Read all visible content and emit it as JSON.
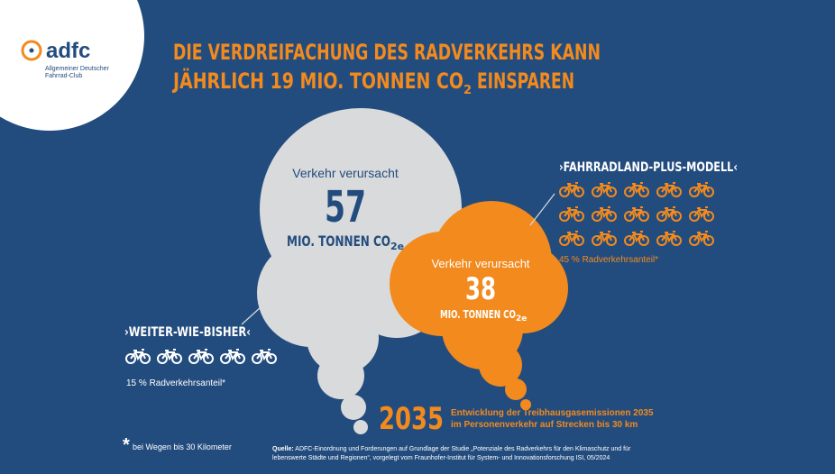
{
  "logo": {
    "name": "adfc",
    "line1": "Allgemeiner Deutscher",
    "line2": "Fahrrad-Club"
  },
  "title": {
    "line1": "DIE VERDREIFACHUNG DES RADVERKEHRS KANN",
    "line2_main": "JÄHRLICH 19 MIO. TONNEN CO",
    "line2_sub": "2",
    "line2_end": " EINSPAREN"
  },
  "current": {
    "caption": "Verkehr verursacht",
    "value": "57",
    "unit_main": "MIO. TONNEN CO",
    "unit_sub": "2e",
    "scenario": "›WEITER-WIE-BISHER‹",
    "share": "15 % Radverkehrsanteil*"
  },
  "plus": {
    "caption": "Verkehr verursacht",
    "value": "38",
    "unit_main": "MIO. TONNEN CO",
    "unit_sub": "2e",
    "scenario": "›FAHRRADLAND-PLUS-MODELL‹",
    "share": "45 % Radverkehrsanteil*"
  },
  "year": {
    "value": "2035",
    "line1": "Entwicklung der Treibhausgasemissionen 2035",
    "line2": "im Personenverkehr auf Strecken bis 30 km"
  },
  "footnote": {
    "mark": "*",
    "text": "bei Wegen bis 30 Kilometer"
  },
  "source": {
    "label": "Quelle:",
    "line1": "ADFC-Einordnung und Forderungen auf Grundlage der Studie „Potenziale des Radverkehrs für den Klimaschutz und für",
    "line2": "lebenswerte Städte und Regionen“, vorgelegt vom Fraunhofer-Institut für System- und Innovationsforschung ISI, 05/2024"
  }
}
